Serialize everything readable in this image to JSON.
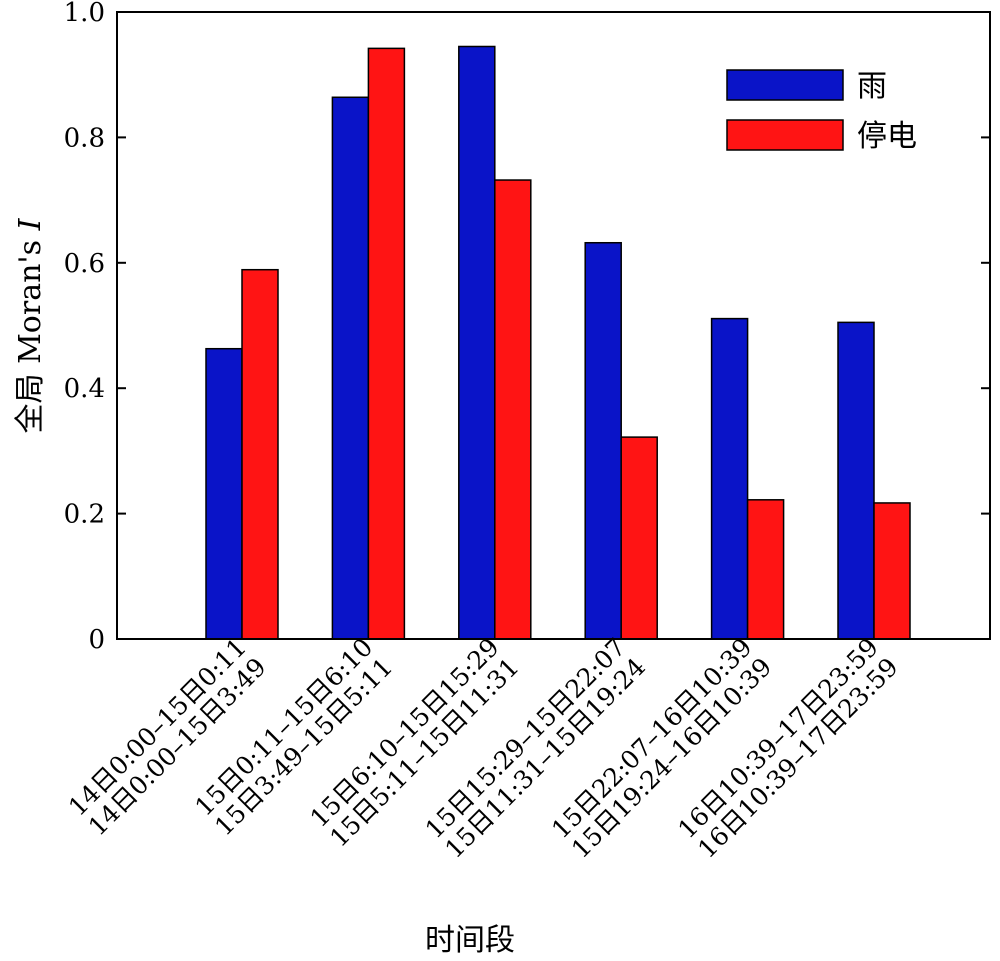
{
  "chart_data": {
    "type": "bar",
    "title": "",
    "xlabel": "时间段",
    "ylabel_main": "全局 Moran's ",
    "ylabel_italic": "I",
    "ylim": [
      0,
      1.0
    ],
    "yticks": [
      0,
      0.2,
      0.4,
      0.6,
      0.8,
      1.0
    ],
    "ytick_labels": [
      "0",
      "0.2",
      "0.4",
      "0.6",
      "0.8",
      "1.0"
    ],
    "legend_position": "top-right",
    "categories": [
      {
        "line1": "14日0:00–15日0:11",
        "line2": "14日0:00–15日3:49"
      },
      {
        "line1": "15日0:11–15日6:10",
        "line2": "15日3:49–15日5:11"
      },
      {
        "line1": "15日6:10–15日15:29",
        "line2": "15日5:11–15日11:31"
      },
      {
        "line1": "15日15:29–15日22:07",
        "line2": "15日11:31–15日19:24"
      },
      {
        "line1": "15日22:07–16日10:39",
        "line2": "15日19:24–16日10:39"
      },
      {
        "line1": "16日10:39–17日23:59",
        "line2": "16日10:39–17日23:59"
      }
    ],
    "series": [
      {
        "name": "雨",
        "color": "#0a14c8",
        "values": [
          0.463,
          0.864,
          0.945,
          0.632,
          0.511,
          0.505
        ]
      },
      {
        "name": "停电",
        "color": "#ff1414",
        "values": [
          0.589,
          0.942,
          0.732,
          0.322,
          0.222,
          0.217
        ]
      }
    ]
  }
}
